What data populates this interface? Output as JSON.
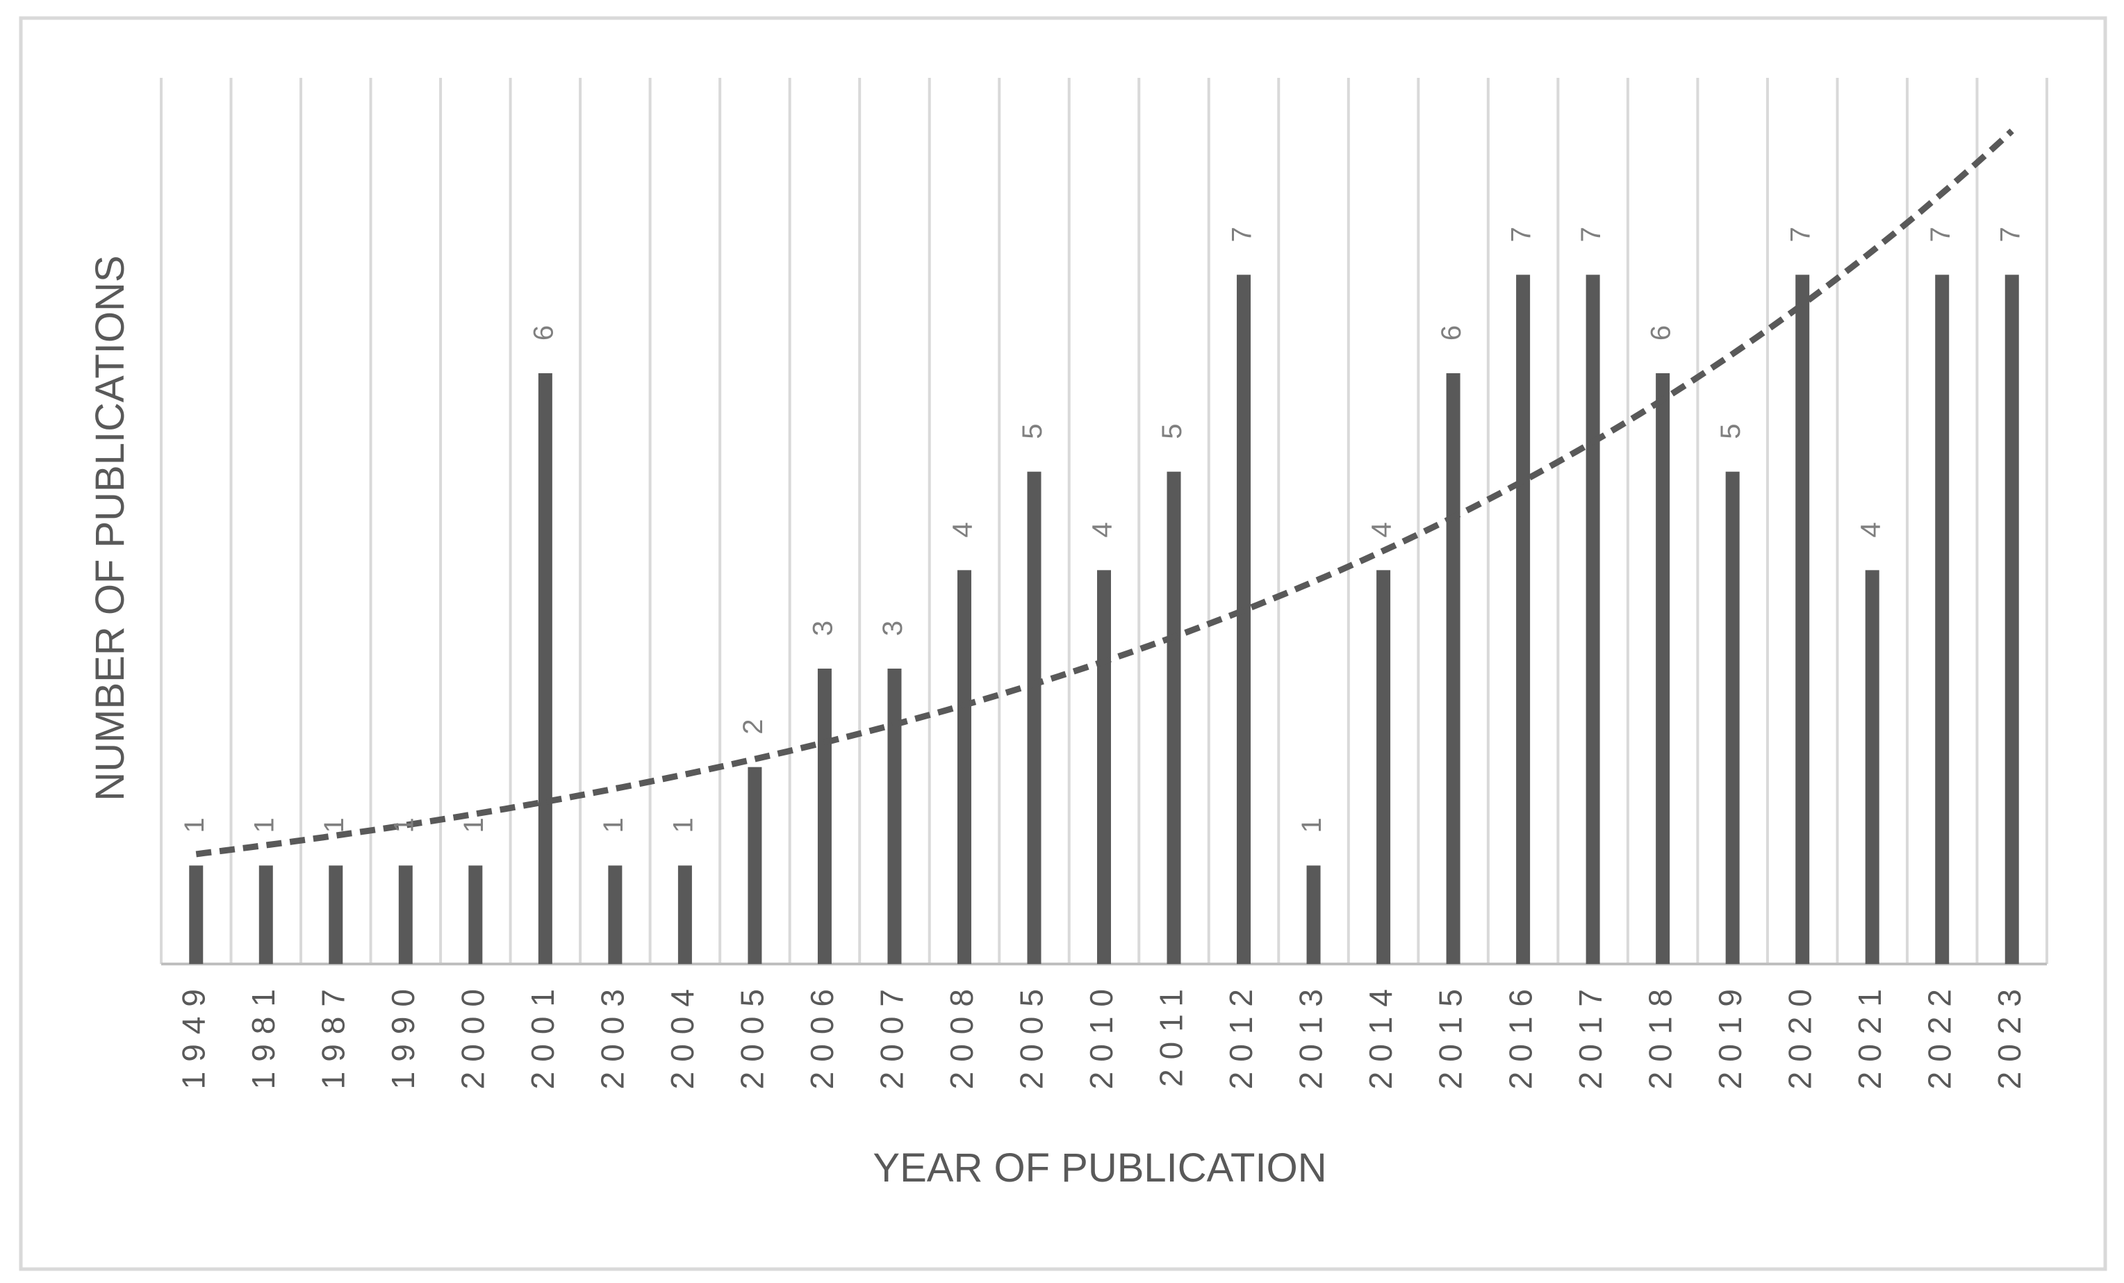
{
  "chart_data": {
    "type": "bar",
    "title": "",
    "xlabel": "YEAR OF PUBLICATION",
    "ylabel": "NUMBER OF PUBLICATIONS",
    "categories": [
      "1949",
      "1981",
      "1987",
      "1990",
      "2000",
      "2001",
      "2003",
      "2004",
      "2005",
      "2006",
      "2007",
      "2008",
      "2005",
      "2010",
      "2011",
      "2012",
      "2013",
      "2014",
      "2015",
      "2016",
      "2017",
      "2018",
      "2019",
      "2020",
      "2021",
      "2022",
      "2023"
    ],
    "values": [
      1,
      1,
      1,
      1,
      1,
      6,
      1,
      1,
      2,
      3,
      3,
      4,
      5,
      4,
      5,
      7,
      1,
      4,
      6,
      7,
      7,
      6,
      5,
      7,
      4,
      7,
      7
    ],
    "ylim": [
      0,
      9
    ],
    "grid": "vertical",
    "data_labels": true,
    "trendline": {
      "type": "exponential",
      "style": "dashed"
    },
    "colors": {
      "bar": "#595959",
      "grid": "#d9d9d9",
      "label": "#7f7f7f"
    }
  }
}
